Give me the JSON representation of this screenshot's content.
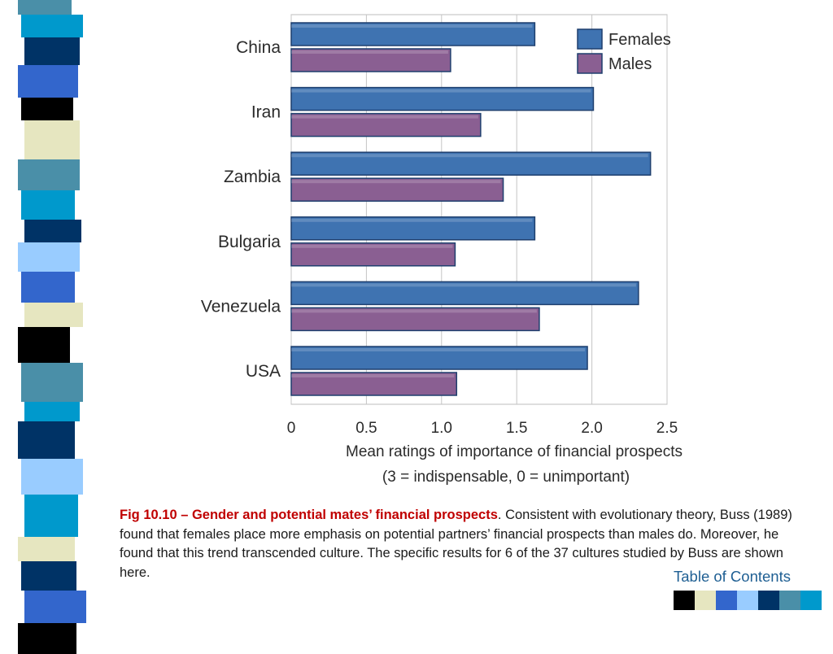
{
  "chart_data": {
    "type": "bar",
    "orientation": "horizontal",
    "categories": [
      "China",
      "Iran",
      "Zambia",
      "Bulgaria",
      "Venezuela",
      "USA"
    ],
    "series": [
      {
        "name": "Females",
        "color": "#3f73b1",
        "values": [
          1.62,
          2.01,
          2.39,
          1.62,
          2.31,
          1.97
        ]
      },
      {
        "name": "Males",
        "color": "#8a5f92",
        "values": [
          1.06,
          1.26,
          1.41,
          1.09,
          1.65,
          1.1
        ]
      }
    ],
    "xlim": [
      0,
      2.5
    ],
    "xticks": [
      "0",
      "0.5",
      "1.0",
      "1.5",
      "2.0",
      "2.5"
    ],
    "xlabel": "Mean ratings of importance of financial prospects",
    "xlabel2": "(3 = indispensable, 0 = unimportant)",
    "legend_position": "top-right",
    "grid": true
  },
  "caption": {
    "title": "Fig 10.10 – Gender and potential mates’ financial prospects",
    "title_period": ".",
    "body": " Consistent with evolutionary theory, Buss (1989) found that females place more emphasis on potential partners’ financial prospects than males do. Moreover, he found that this trend transcended culture. The specific results for 6 of the 37 cultures studied by Buss are shown here."
  },
  "toc_link": "Table of Contents",
  "decor": {
    "strip_colors": [
      "#4a8fa8",
      "#0099cc",
      "#003366",
      "#3366cc",
      "#000000",
      "#e6e6c0",
      "#4a8fa8",
      "#0099cc",
      "#003366",
      "#99ccff",
      "#3366cc",
      "#e6e6c0",
      "#000000",
      "#4a8fa8",
      "#0099cc",
      "#003366",
      "#99ccff",
      "#0099cc",
      "#e6e6c0",
      "#003366",
      "#3366cc",
      "#000000"
    ],
    "toc_square_colors": [
      "#000000",
      "#e6e6c0",
      "#3366cc",
      "#99ccff",
      "#003366",
      "#4a8fa8",
      "#0099cc"
    ]
  }
}
